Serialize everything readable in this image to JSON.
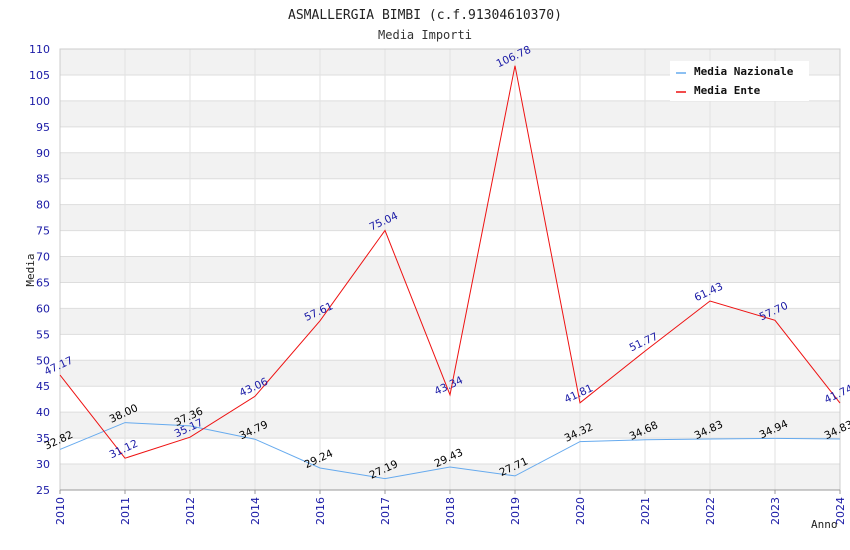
{
  "chart_data": {
    "type": "line",
    "title": "ASMALLERGIA BIMBI (c.f.91304610370)",
    "subtitle": "Media Importi",
    "xlabel": "Anno",
    "ylabel": "Media",
    "ylim": [
      25,
      110
    ],
    "ystep": 5,
    "grid": true,
    "legend_position": "top-right",
    "categories": [
      "2010",
      "2011",
      "2012",
      "2014",
      "2016",
      "2017",
      "2018",
      "2019",
      "2020",
      "2021",
      "2022",
      "2023",
      "2024"
    ],
    "series": [
      {
        "name": "Media Nazionale",
        "color": "#66aaee",
        "label_color": "#000000",
        "values": [
          32.82,
          38.0,
          37.36,
          34.79,
          29.24,
          27.19,
          29.43,
          27.71,
          34.32,
          34.68,
          34.83,
          34.94,
          34.83
        ],
        "labels": [
          "32.82",
          "38.00",
          "37.36",
          "34.79",
          "29.24",
          "27.19",
          "29.43",
          "27.71",
          "34.32",
          "34.68",
          "34.83",
          "34.94",
          "34.83"
        ]
      },
      {
        "name": "Media Ente",
        "color": "#ee1111",
        "label_color": "#1a1aa6",
        "values": [
          47.17,
          31.12,
          35.17,
          43.06,
          57.61,
          75.04,
          43.34,
          106.78,
          41.81,
          51.77,
          61.43,
          57.7,
          41.74
        ],
        "labels": [
          "47.17",
          "31.12",
          "35.17",
          "43.06",
          "57.61",
          "75.04",
          "43.34",
          "106.78",
          "41.81",
          "51.77",
          "61.43",
          "57.70",
          "41.74"
        ]
      }
    ]
  }
}
